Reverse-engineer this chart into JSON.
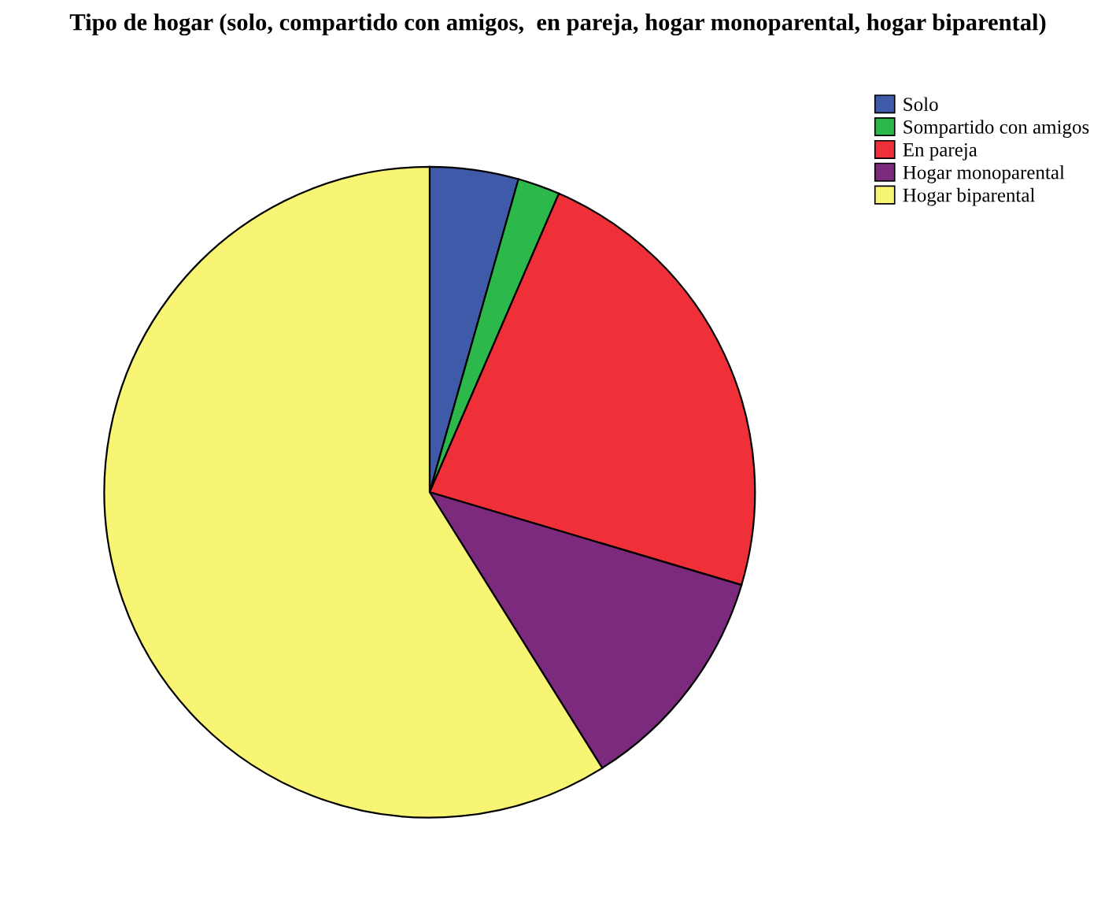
{
  "chart_data": {
    "type": "pie",
    "title": "Tipo de hogar (solo, compartido con amigos,  en pareja, hogar monoparental, hogar biparental)",
    "categories": [
      "Solo",
      "Sompartido con amigos",
      "En pareja",
      "Hogar monoparental",
      "Hogar biparental"
    ],
    "values": [
      4.4,
      2.1,
      23.1,
      11.5,
      58.9
    ],
    "colors": [
      "#3f5aa8",
      "#2db84b",
      "#ef3038",
      "#7b2a7e",
      "#f8f574"
    ],
    "legend": "top right"
  }
}
